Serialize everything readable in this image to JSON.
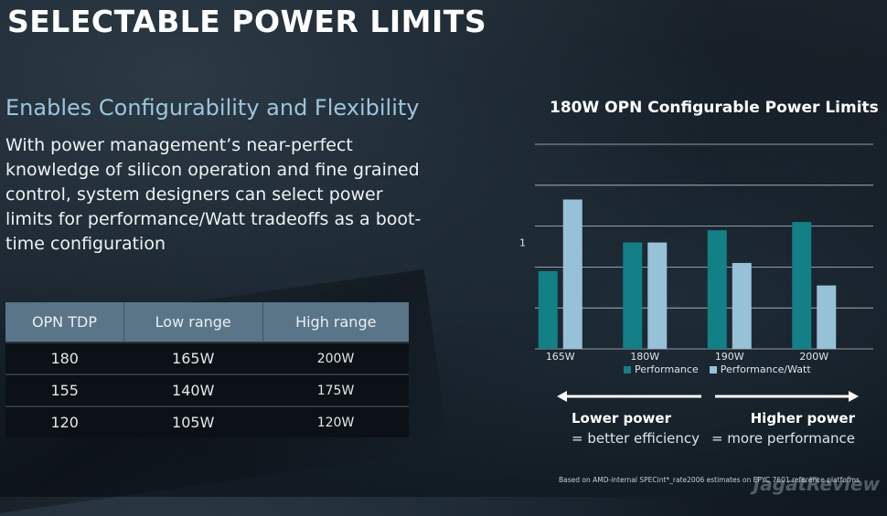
{
  "title": "SELECTABLE POWER LIMITS",
  "subtitle": "Enables Configurability and Flexibility",
  "description": "With power management’s near-perfect knowledge of silicon operation and fine grained control, system designers can select power limits for performance/Watt tradeoffs as a boot-time configuration",
  "table": {
    "headers": [
      "OPN TDP",
      "Low range",
      "High range"
    ],
    "rows": [
      [
        "180",
        "165W",
        "200W"
      ],
      [
        "155",
        "140W",
        "175W"
      ],
      [
        "120",
        "105W",
        "120W"
      ]
    ]
  },
  "chart_data": {
    "type": "bar",
    "title": "180W OPN Configurable Power Limits",
    "categories": [
      "165W",
      "180W",
      "190W",
      "200W"
    ],
    "series": [
      {
        "name": "Performance",
        "values": [
          0.86,
          1.0,
          1.06,
          1.1
        ]
      },
      {
        "name": "Performance/Watt",
        "values": [
          1.21,
          1.0,
          0.9,
          0.79
        ]
      }
    ],
    "ytick_labels": [
      "1"
    ],
    "ylim": [
      0.48,
      1.48
    ],
    "grid": true,
    "legend_position": "bottom",
    "colors": [
      "#137f86",
      "#97c1d6"
    ]
  },
  "annotations": {
    "lower_power": "Lower power",
    "lower_power_sub": "= better efficiency",
    "higher_power": "Higher power",
    "higher_power_sub": "= more performance"
  },
  "footnote": "Based on AMD-internal SPECint*_rate2006 estimates on EPYC 7601 reference platforms",
  "watermark": "JagatReview"
}
